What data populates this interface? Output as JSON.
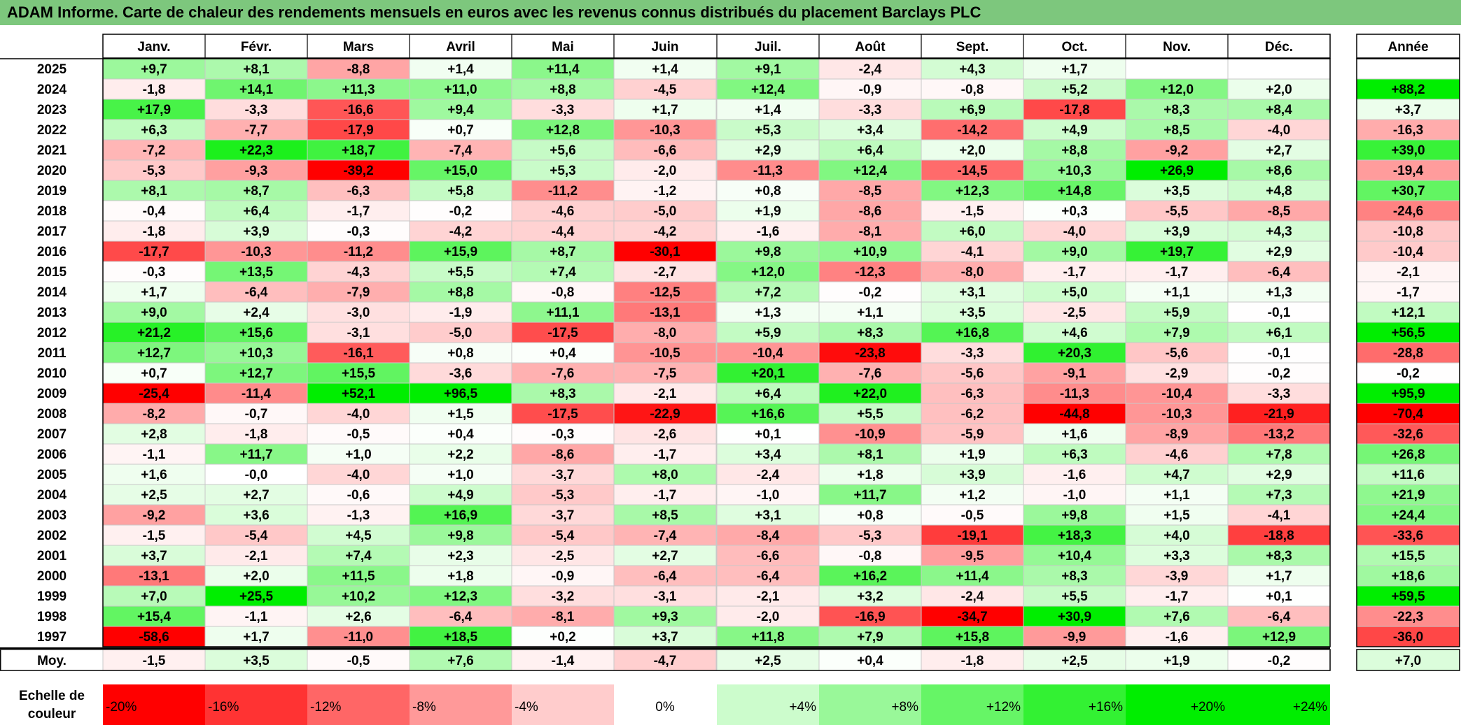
{
  "title": "ADAM Informe. Carte de chaleur des rendements mensuels en euros avec les revenus connus distribués du placement Barclays PLC",
  "chart_data": {
    "type": "heatmap",
    "title": "ADAM Informe. Carte de chaleur des rendements mensuels en euros avec les revenus connus distribués du placement Barclays PLC",
    "months": [
      "Janv.",
      "Févr.",
      "Mars",
      "Avril",
      "Mai",
      "Juin",
      "Juil.",
      "Août",
      "Sept.",
      "Oct.",
      "Nov.",
      "Déc."
    ],
    "year_header": "Année",
    "rows": [
      {
        "year": "2025",
        "values": [
          "+9,7",
          "+8,1",
          "-8,8",
          "+1,4",
          "+11,4",
          "+1,4",
          "+9,1",
          "-2,4",
          "+4,3",
          "+1,7",
          "",
          ""
        ],
        "annual": ""
      },
      {
        "year": "2024",
        "values": [
          "-1,8",
          "+14,1",
          "+11,3",
          "+11,0",
          "+8,8",
          "-4,5",
          "+12,4",
          "-0,9",
          "-0,8",
          "+5,2",
          "+12,0",
          "+2,0"
        ],
        "annual": "+88,2"
      },
      {
        "year": "2023",
        "values": [
          "+17,9",
          "-3,3",
          "-16,6",
          "+9,4",
          "-3,3",
          "+1,7",
          "+1,4",
          "-3,3",
          "+6,9",
          "-17,8",
          "+8,3",
          "+8,4"
        ],
        "annual": "+3,7"
      },
      {
        "year": "2022",
        "values": [
          "+6,3",
          "-7,7",
          "-17,9",
          "+0,7",
          "+12,8",
          "-10,3",
          "+5,3",
          "+3,4",
          "-14,2",
          "+4,9",
          "+8,5",
          "-4,0"
        ],
        "annual": "-16,3"
      },
      {
        "year": "2021",
        "values": [
          "-7,2",
          "+22,3",
          "+18,7",
          "-7,4",
          "+5,6",
          "-6,6",
          "+2,9",
          "+6,4",
          "+2,0",
          "+8,8",
          "-9,2",
          "+2,7"
        ],
        "annual": "+39,0"
      },
      {
        "year": "2020",
        "values": [
          "-5,3",
          "-9,3",
          "-39,2",
          "+15,0",
          "+5,3",
          "-2,0",
          "-11,3",
          "+12,4",
          "-14,5",
          "+10,3",
          "+26,9",
          "+8,6"
        ],
        "annual": "-19,4"
      },
      {
        "year": "2019",
        "values": [
          "+8,1",
          "+8,7",
          "-6,3",
          "+5,8",
          "-11,2",
          "-1,2",
          "+0,8",
          "-8,5",
          "+12,3",
          "+14,8",
          "+3,5",
          "+4,8"
        ],
        "annual": "+30,7"
      },
      {
        "year": "2018",
        "values": [
          "-0,4",
          "+6,4",
          "-1,7",
          "-0,2",
          "-4,6",
          "-5,0",
          "+1,9",
          "-8,6",
          "-1,5",
          "+0,3",
          "-5,5",
          "-8,5"
        ],
        "annual": "-24,6"
      },
      {
        "year": "2017",
        "values": [
          "-1,8",
          "+3,9",
          "-0,3",
          "-4,2",
          "-4,4",
          "-4,2",
          "-1,6",
          "-8,1",
          "+6,0",
          "-4,0",
          "+3,9",
          "+4,3"
        ],
        "annual": "-10,8"
      },
      {
        "year": "2016",
        "values": [
          "-17,7",
          "-10,3",
          "-11,2",
          "+15,9",
          "+8,7",
          "-30,1",
          "+9,8",
          "+10,9",
          "-4,1",
          "+9,0",
          "+19,7",
          "+2,9"
        ],
        "annual": "-10,4"
      },
      {
        "year": "2015",
        "values": [
          "-0,3",
          "+13,5",
          "-4,3",
          "+5,5",
          "+7,4",
          "-2,7",
          "+12,0",
          "-12,3",
          "-8,0",
          "-1,7",
          "-1,7",
          "-6,4"
        ],
        "annual": "-2,1"
      },
      {
        "year": "2014",
        "values": [
          "+1,7",
          "-6,4",
          "-7,9",
          "+8,8",
          "-0,8",
          "-12,5",
          "+7,2",
          "-0,2",
          "+3,1",
          "+5,0",
          "+1,1",
          "+1,3"
        ],
        "annual": "-1,7"
      },
      {
        "year": "2013",
        "values": [
          "+9,0",
          "+2,4",
          "-3,0",
          "-1,9",
          "+11,1",
          "-13,1",
          "+1,3",
          "+1,1",
          "+3,5",
          "-2,5",
          "+5,9",
          "-0,1"
        ],
        "annual": "+12,1"
      },
      {
        "year": "2012",
        "values": [
          "+21,2",
          "+15,6",
          "-3,1",
          "-5,0",
          "-17,5",
          "-8,0",
          "+5,9",
          "+8,3",
          "+16,8",
          "+4,6",
          "+7,9",
          "+6,1"
        ],
        "annual": "+56,5"
      },
      {
        "year": "2011",
        "values": [
          "+12,7",
          "+10,3",
          "-16,1",
          "+0,8",
          "+0,4",
          "-10,5",
          "-10,4",
          "-23,8",
          "-3,3",
          "+20,3",
          "-5,6",
          "-0,1"
        ],
        "annual": "-28,8"
      },
      {
        "year": "2010",
        "values": [
          "+0,7",
          "+12,7",
          "+15,5",
          "-3,6",
          "-7,6",
          "-7,5",
          "+20,1",
          "-7,6",
          "-5,6",
          "-9,1",
          "-2,9",
          "-0,2"
        ],
        "annual": "-0,2"
      },
      {
        "year": "2009",
        "values": [
          "-25,4",
          "-11,4",
          "+52,1",
          "+96,5",
          "+8,3",
          "-2,1",
          "+6,4",
          "+22,0",
          "-6,3",
          "-11,3",
          "-10,4",
          "-3,3"
        ],
        "annual": "+95,9"
      },
      {
        "year": "2008",
        "values": [
          "-8,2",
          "-0,7",
          "-4,0",
          "+1,5",
          "-17,5",
          "-22,9",
          "+16,6",
          "+5,5",
          "-6,2",
          "-44,8",
          "-10,3",
          "-21,9"
        ],
        "annual": "-70,4"
      },
      {
        "year": "2007",
        "values": [
          "+2,8",
          "-1,8",
          "-0,5",
          "+0,4",
          "-0,3",
          "-2,6",
          "+0,1",
          "-10,9",
          "-5,9",
          "+1,6",
          "-8,9",
          "-13,2"
        ],
        "annual": "-32,6"
      },
      {
        "year": "2006",
        "values": [
          "-1,1",
          "+11,7",
          "+1,0",
          "+2,2",
          "-8,6",
          "-1,7",
          "+3,4",
          "+8,1",
          "+1,9",
          "+6,3",
          "-4,6",
          "+7,8"
        ],
        "annual": "+26,8"
      },
      {
        "year": "2005",
        "values": [
          "+1,6",
          "-0,0",
          "-4,0",
          "+1,0",
          "-3,7",
          "+8,0",
          "-2,4",
          "+1,8",
          "+3,9",
          "-1,6",
          "+4,7",
          "+2,9"
        ],
        "annual": "+11,6"
      },
      {
        "year": "2004",
        "values": [
          "+2,5",
          "+2,7",
          "-0,6",
          "+4,9",
          "-5,3",
          "-1,7",
          "-1,0",
          "+11,7",
          "+1,2",
          "-1,0",
          "+1,1",
          "+7,3"
        ],
        "annual": "+21,9"
      },
      {
        "year": "2003",
        "values": [
          "-9,2",
          "+3,6",
          "-1,3",
          "+16,9",
          "-3,7",
          "+8,5",
          "+3,1",
          "+0,8",
          "-0,5",
          "+9,8",
          "+1,5",
          "-4,1"
        ],
        "annual": "+24,4"
      },
      {
        "year": "2002",
        "values": [
          "-1,5",
          "-5,4",
          "+4,5",
          "+9,8",
          "-5,4",
          "-7,4",
          "-8,4",
          "-5,3",
          "-19,1",
          "+18,3",
          "+4,0",
          "-18,8"
        ],
        "annual": "-33,6"
      },
      {
        "year": "2001",
        "values": [
          "+3,7",
          "-2,1",
          "+7,4",
          "+2,3",
          "-2,5",
          "+2,7",
          "-6,6",
          "-0,8",
          "-9,5",
          "+10,4",
          "+3,3",
          "+8,3"
        ],
        "annual": "+15,5"
      },
      {
        "year": "2000",
        "values": [
          "-13,1",
          "+2,0",
          "+11,5",
          "+1,8",
          "-0,9",
          "-6,4",
          "-6,4",
          "+16,2",
          "+11,4",
          "+8,3",
          "-3,9",
          "+1,7"
        ],
        "annual": "+18,6"
      },
      {
        "year": "1999",
        "values": [
          "+7,0",
          "+25,5",
          "+10,2",
          "+12,3",
          "-3,2",
          "-3,1",
          "-2,1",
          "+3,2",
          "-2,4",
          "+5,5",
          "-1,7",
          "+0,1"
        ],
        "annual": "+59,5"
      },
      {
        "year": "1998",
        "values": [
          "+15,4",
          "-1,1",
          "+2,6",
          "-6,4",
          "-8,1",
          "+9,3",
          "-2,0",
          "-16,9",
          "-34,7",
          "+30,9",
          "+7,6",
          "-6,4"
        ],
        "annual": "-22,3"
      },
      {
        "year": "1997",
        "values": [
          "-58,6",
          "+1,7",
          "-11,0",
          "+18,5",
          "+0,2",
          "+3,7",
          "+11,8",
          "+7,9",
          "+15,8",
          "-9,9",
          "-1,6",
          "+12,9"
        ],
        "annual": "-36,0"
      }
    ],
    "average": {
      "label": "Moy.",
      "values": [
        "-1,5",
        "+3,5",
        "-0,5",
        "+7,6",
        "-1,4",
        "-4,7",
        "+2,5",
        "+0,4",
        "-1,8",
        "+2,5",
        "+1,9",
        "-0,2"
      ],
      "annual": "+7,0"
    },
    "scale": {
      "label_line1": "Echelle de",
      "label_line2": "couleur",
      "steps": [
        "-20%",
        "-16%",
        "-12%",
        "-8%",
        "-4%",
        "0%",
        "+4%",
        "+8%",
        "+12%",
        "+16%",
        "+20%",
        "+24%"
      ]
    },
    "colors": {
      "neg_max": "#ff0000",
      "pos_max": "#00ee00",
      "neutral": "#ffffff",
      "title_bg": "#7dc77d"
    }
  }
}
